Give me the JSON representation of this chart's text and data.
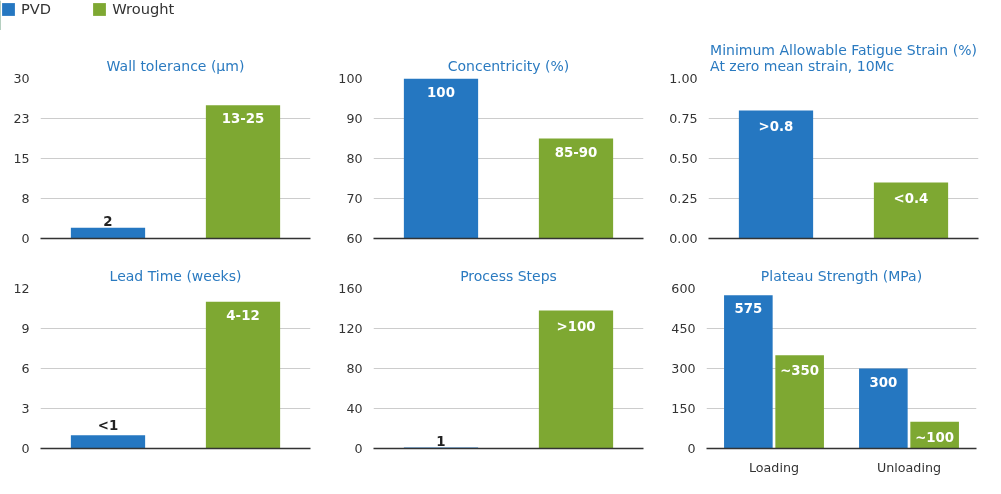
{
  "chart_data": [
    {
      "type": "bar",
      "title": "Wall tolerance (µm)",
      "categories": [
        null,
        null
      ],
      "legend": "top left",
      "grid": "y",
      "ylim": [
        0,
        30
      ],
      "yticks": [
        0,
        {
          "value": 7.5,
          "label": "8"
        },
        15,
        {
          "value": 22.5,
          "label": "23"
        },
        30
      ],
      "series": [
        {
          "name": "PVD",
          "color": "#2577c1",
          "values": [
            2,
            null
          ],
          "value_labels": [
            "2",
            null
          ]
        },
        {
          "name": "Wrought",
          "color": "#7ea832",
          "values": [
            null,
            25
          ],
          "value_labels": [
            null,
            "13-25"
          ]
        }
      ]
    },
    {
      "type": "bar",
      "title": "Concentricity (%)",
      "categories": [
        null,
        null
      ],
      "grid": "y",
      "ylim": [
        60,
        100
      ],
      "yticks": [
        60,
        70,
        80,
        90,
        100
      ],
      "series": [
        {
          "color": "#2577c1",
          "values": [
            100,
            null
          ],
          "value_labels": [
            "100",
            null
          ]
        },
        {
          "color": "#7ea832",
          "values": [
            null,
            85
          ],
          "value_labels": [
            null,
            "85-90"
          ]
        }
      ]
    },
    {
      "type": "bar",
      "title": "Minimum Allowable Fatigue Strain (%)\nAt zero mean strain, 10Mc",
      "categories": [
        null,
        null
      ],
      "grid": "y",
      "ylim": [
        0,
        1
      ],
      "yticks": [
        {
          "value": 0,
          "label": "0.00"
        },
        {
          "value": 0.25,
          "label": "0.25"
        },
        {
          "value": 0.5,
          "label": "0.50"
        },
        {
          "value": 0.75,
          "label": "0.75"
        },
        {
          "value": 1,
          "label": "1.00"
        }
      ],
      "series": [
        {
          "color": "#2577c1",
          "values": [
            0.8,
            null
          ],
          "value_labels": [
            ">0.8",
            null
          ]
        },
        {
          "color": "#7ea832",
          "values": [
            null,
            0.35
          ],
          "value_labels": [
            null,
            "<0.4"
          ]
        }
      ]
    },
    {
      "type": "bar",
      "title": "Lead Time (weeks)",
      "categories": [
        null,
        null
      ],
      "grid": "y",
      "ylim": [
        0,
        12
      ],
      "yticks": [
        0,
        3,
        6,
        9,
        12
      ],
      "series": [
        {
          "color": "#2577c1",
          "values": [
            1,
            null
          ],
          "value_labels": [
            "<1",
            null
          ]
        },
        {
          "color": "#7ea832",
          "values": [
            null,
            11
          ],
          "value_labels": [
            null,
            "4-12"
          ]
        }
      ]
    },
    {
      "type": "bar",
      "title": "Process Steps",
      "categories": [
        null,
        null
      ],
      "grid": "y",
      "ylim": [
        0,
        160
      ],
      "yticks": [
        0,
        40,
        80,
        120,
        160
      ],
      "series": [
        {
          "color": "#2577c1",
          "values": [
            1,
            null
          ],
          "value_labels": [
            "1",
            null
          ]
        },
        {
          "color": "#7ea832",
          "values": [
            null,
            138
          ],
          "value_labels": [
            null,
            ">100"
          ]
        }
      ]
    },
    {
      "type": "bar",
      "title": "Plateau Strength (MPa)",
      "categories": [
        "Loading",
        "Unloading"
      ],
      "grid": "y",
      "ylim": [
        0,
        600
      ],
      "yticks": [
        0,
        150,
        300,
        450,
        600
      ],
      "series": [
        {
          "color": "#2577c1",
          "values": [
            575,
            300
          ],
          "value_labels": [
            "575",
            "300"
          ]
        },
        {
          "color": "#7ea832",
          "values": [
            350,
            100
          ],
          "value_labels": [
            "~350",
            "~100"
          ]
        }
      ]
    }
  ]
}
